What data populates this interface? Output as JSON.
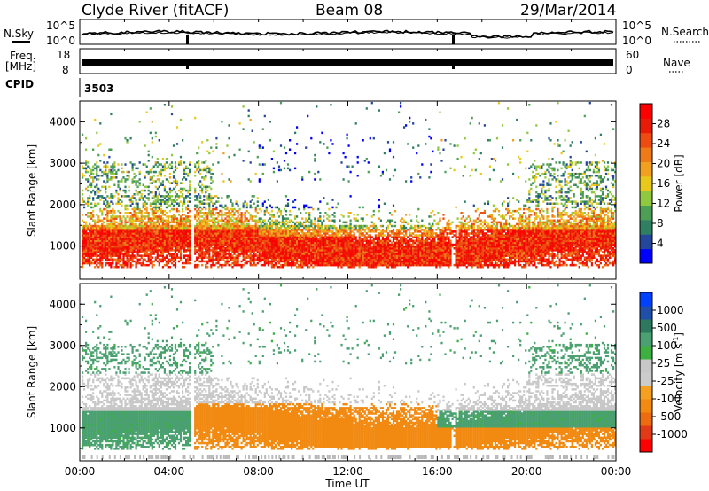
{
  "header": {
    "station": "Clyde River (fitACF)",
    "beam": "Beam 08",
    "date": "29/Mar/2014"
  },
  "strip_labels": {
    "nsky": "N.Sky",
    "nsearch": "N.Search",
    "freq_line1": "Freq.",
    "freq_line2": "[MHz]",
    "nave": "Nave",
    "cpid": "CPID",
    "cpid_value": "3503"
  },
  "strip_ticks": {
    "noise_left": [
      "10^5",
      "10^0"
    ],
    "noise_right": [
      "10^5",
      "10^0"
    ],
    "freq_left": [
      "18",
      "8"
    ],
    "nave_right": [
      "60",
      "0"
    ]
  },
  "colors": {
    "ice": "#4a6ab8",
    "power_scale": [
      "#0000ff",
      "#24479c",
      "#2f7f63",
      "#4d9f55",
      "#90c840",
      "#e8c81a",
      "#f2a020",
      "#ee7a18",
      "#ee4b10",
      "#e81b06",
      "#ff0000"
    ],
    "velocity_scale": [
      "#ff0000",
      "#e23a16",
      "#ee6c10",
      "#f28a12",
      "#f5a020",
      "#cccccc",
      "#c8c8c8",
      "#3cb040",
      "#4aa070",
      "#2f7860",
      "#1f4fa8",
      "#0040ff"
    ]
  },
  "chart_data": [
    {
      "type": "heatmap",
      "name": "power",
      "ylabel": "Slant Range [km]",
      "yticks": [
        1000,
        2000,
        3000,
        4000
      ],
      "ylim": [
        200,
        4500
      ],
      "xlim": [
        0,
        24
      ],
      "colorbar": {
        "label": "Power [dB]",
        "ticks": [
          4,
          8,
          12,
          16,
          20,
          24,
          28
        ],
        "range": [
          0,
          32
        ]
      }
    },
    {
      "type": "heatmap",
      "name": "velocity",
      "ylabel": "Slant Range [km]",
      "yticks": [
        1000,
        2000,
        3000,
        4000
      ],
      "ylim": [
        200,
        4500
      ],
      "xlim": [
        0,
        24
      ],
      "xlabel": "Time UT",
      "xticks": [
        "00:00",
        "04:00",
        "08:00",
        "12:00",
        "16:00",
        "20:00",
        "00:00"
      ],
      "colorbar": {
        "label": "Velocity [m s",
        "label_sup": "-1",
        "label_end": "]",
        "ticks": [
          "1000",
          "500",
          "100",
          "25",
          "-25",
          "-100",
          "-500",
          "-1000"
        ]
      }
    }
  ]
}
